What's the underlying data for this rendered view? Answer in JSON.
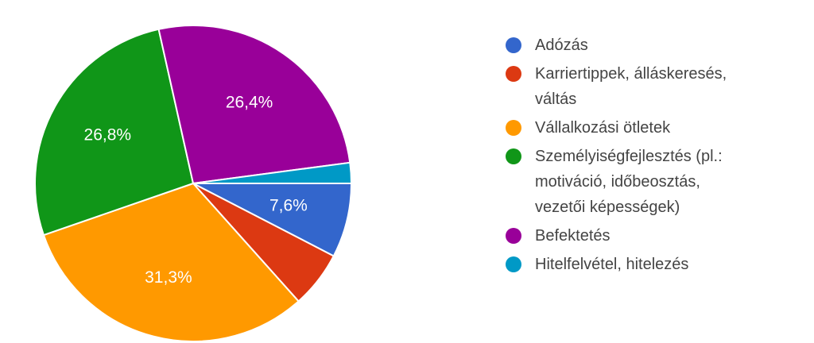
{
  "chart_data": {
    "type": "pie",
    "slices": [
      {
        "label": "Adózás",
        "value": 7.6,
        "display": "7,6%",
        "color": "#3366cc"
      },
      {
        "label": "Karriertippek, álláskeresés, váltás",
        "value": 5.8,
        "display": "",
        "color": "#dc3912"
      },
      {
        "label": "Vállalkozási ötletek",
        "value": 31.3,
        "display": "31,3%",
        "color": "#ff9900"
      },
      {
        "label": "Személyiségfejlesztés (pl.: motiváció, időbeosztás, vezetői képességek)",
        "value": 26.8,
        "display": "26,8%",
        "color": "#109618"
      },
      {
        "label": "Befektetés",
        "value": 26.4,
        "display": "26,4%",
        "color": "#990099"
      },
      {
        "label": "Hitelfelvétel, hitelezés",
        "value": 2.1,
        "display": "",
        "color": "#0099c6"
      }
    ],
    "start_direction": "horizontal-right",
    "rotation": "clockwise",
    "legend_position": "right"
  },
  "legend": {
    "items": [
      {
        "lines": [
          "Adózás"
        ],
        "color": "#3366cc"
      },
      {
        "lines": [
          "Karriertippek, álláskeresés,",
          "váltás"
        ],
        "color": "#dc3912"
      },
      {
        "lines": [
          "Vállalkozási ötletek"
        ],
        "color": "#ff9900"
      },
      {
        "lines": [
          "Személyiségfejlesztés (pl.:",
          "motiváció, időbeosztás,",
          "vezetői képességek)"
        ],
        "color": "#109618"
      },
      {
        "lines": [
          "Befektetés"
        ],
        "color": "#990099"
      },
      {
        "lines": [
          "Hitelfelvétel, hitelezés"
        ],
        "color": "#0099c6"
      }
    ]
  }
}
